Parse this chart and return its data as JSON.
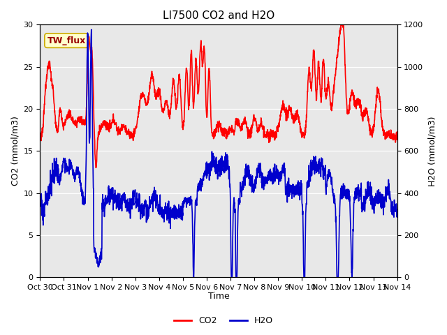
{
  "title": "LI7500 CO2 and H2O",
  "xlabel": "Time",
  "ylabel_left": "CO2 (mmol/m3)",
  "ylabel_right": "H2O (mmol/m3)",
  "annotation": "TW_flux",
  "xlim_start": 0,
  "xlim_end": 15,
  "ylim_left": [
    0,
    30
  ],
  "ylim_right": [
    0,
    1200
  ],
  "xtick_labels": [
    "Oct 30",
    "Oct 31",
    "Nov 1",
    "Nov 2",
    "Nov 3",
    "Nov 4",
    "Nov 5",
    "Nov 6",
    "Nov 7",
    "Nov 8",
    "Nov 9",
    "Nov 10",
    "Nov 11",
    "Nov 12",
    "Nov 13",
    "Nov 14"
  ],
  "xtick_positions": [
    0,
    1,
    2,
    3,
    4,
    5,
    6,
    7,
    8,
    9,
    10,
    11,
    12,
    13,
    14,
    15
  ],
  "yticks_left": [
    0,
    5,
    10,
    15,
    20,
    25,
    30
  ],
  "yticks_right": [
    0,
    200,
    400,
    600,
    800,
    1000,
    1200
  ],
  "co2_color": "#FF0000",
  "h2o_color": "#0000CC",
  "axes_bg_color": "#E8E8E8",
  "annotation_bg": "#FFFFCC",
  "annotation_edge": "#CCAA00",
  "annotation_text_color": "#990000",
  "title_fontsize": 11,
  "axis_label_fontsize": 9,
  "tick_label_fontsize": 8,
  "legend_fontsize": 9,
  "annotation_fontsize": 9,
  "line_width": 1.2,
  "n_points": 2000
}
